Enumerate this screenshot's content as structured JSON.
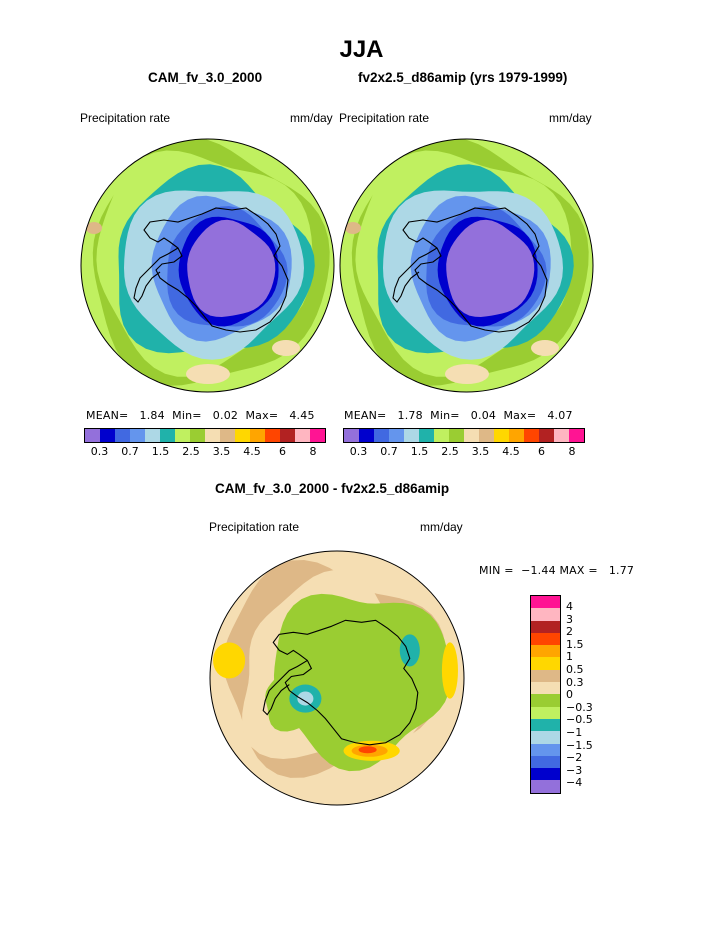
{
  "header": {
    "title": "JJA",
    "left_model": "CAM_fv_3.0_2000",
    "right_model": "fv2x2.5_d86amip (yrs 1979-1999)",
    "diff_title": "CAM_fv_3.0_2000 - fv2x2.5_d86amip"
  },
  "panels": {
    "left": {
      "var_label": "Precipitation rate",
      "unit_label": "mm/day",
      "stats": "MEAN=   1.84  Min=   0.02  Max=   4.45"
    },
    "right": {
      "var_label": "Precipitation rate",
      "unit_label": "mm/day",
      "stats": "MEAN=   1.78  Min=   0.04  Max=   4.07"
    },
    "diff": {
      "var_label": "Precipitation rate",
      "unit_label": "mm/day",
      "stats": "MIN =  −1.44 MAX =   1.77"
    }
  },
  "colors": {
    "abs_scale": [
      "#9370db",
      "#0000cd",
      "#4169e1",
      "#6495ed",
      "#add8e6",
      "#20b2aa",
      "#c0f060",
      "#9acd32",
      "#f5deb3",
      "#deb887",
      "#ffd700",
      "#ffa500",
      "#ff4500",
      "#b22222",
      "#ffb6c1",
      "#ff1493"
    ],
    "diff_scale": [
      "#ff1493",
      "#ffb6c1",
      "#b22222",
      "#ff4500",
      "#ffa500",
      "#ffd700",
      "#deb887",
      "#f5deb3",
      "#9acd32",
      "#c0f060",
      "#20b2aa",
      "#add8e6",
      "#6495ed",
      "#4169e1",
      "#0000cd",
      "#9370db"
    ]
  },
  "chart_data": [
    {
      "type": "heatmap",
      "map_projection": "south-polar stereographic",
      "title": "CAM_fv_3.0_2000",
      "variable": "Precipitation rate",
      "units": "mm/day",
      "mean": 1.84,
      "min": 0.02,
      "max": 4.45,
      "colorbar_levels": [
        0.2,
        0.3,
        0.5,
        0.7,
        1,
        1.5,
        2,
        2.5,
        3,
        3.5,
        4,
        4.5,
        5,
        6,
        7,
        8
      ],
      "colorbar_tick_labels": [
        "0.3",
        "0.7",
        "1.5",
        "2.5",
        "3.5",
        "4.5",
        "6",
        "8"
      ]
    },
    {
      "type": "heatmap",
      "map_projection": "south-polar stereographic",
      "title": "fv2x2.5_d86amip (yrs 1979-1999)",
      "variable": "Precipitation rate",
      "units": "mm/day",
      "mean": 1.78,
      "min": 0.04,
      "max": 4.07,
      "colorbar_levels": [
        0.2,
        0.3,
        0.5,
        0.7,
        1,
        1.5,
        2,
        2.5,
        3,
        3.5,
        4,
        4.5,
        5,
        6,
        7,
        8
      ],
      "colorbar_tick_labels": [
        "0.3",
        "0.7",
        "1.5",
        "2.5",
        "3.5",
        "4.5",
        "6",
        "8"
      ]
    },
    {
      "type": "heatmap",
      "map_projection": "south-polar stereographic",
      "title": "CAM_fv_3.0_2000 - fv2x2.5_d86amip",
      "variable": "Precipitation rate",
      "units": "mm/day",
      "min": -1.44,
      "max": 1.77,
      "colorbar_tick_labels": [
        "4",
        "3",
        "2",
        "1.5",
        "1",
        "0.5",
        "0.3",
        "0",
        "−0.3",
        "−0.5",
        "−1",
        "−1.5",
        "−2",
        "−3",
        "−4"
      ]
    }
  ]
}
